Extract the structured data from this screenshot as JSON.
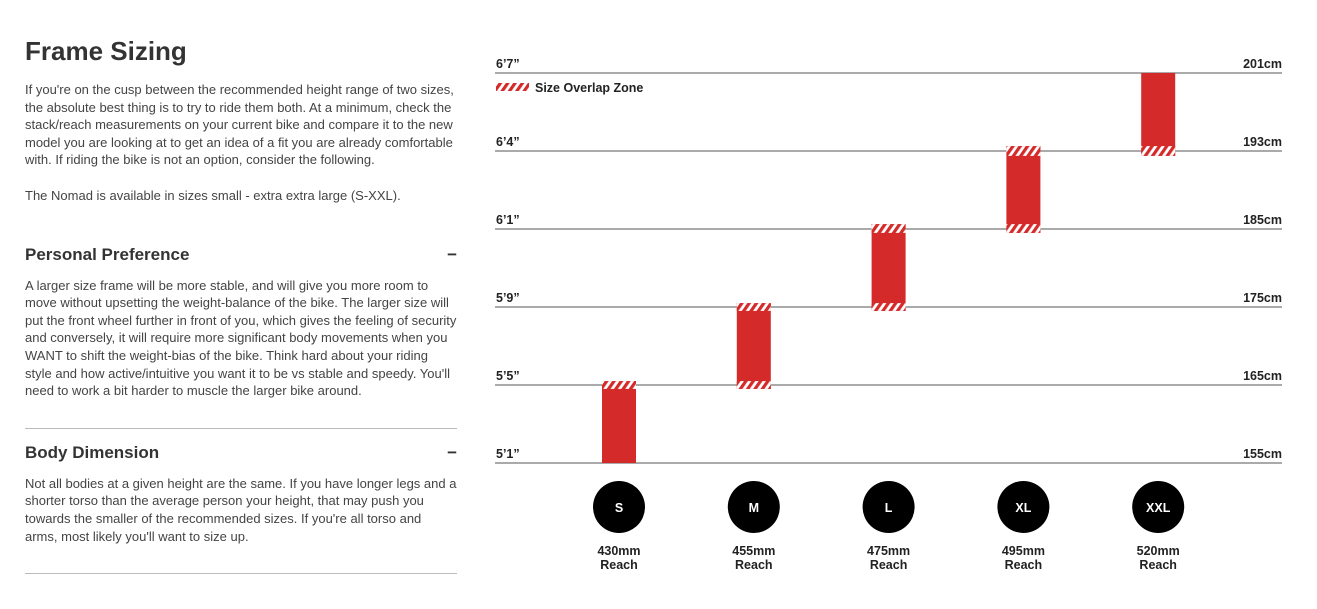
{
  "article": {
    "title": "Frame Sizing",
    "intro": [
      "If you're on the cusp between the recommended height range of two sizes, the absolute best thing is to try to ride them both. At a minimum, check the stack/reach measurements on your current bike and compare it to the new model you are looking at to get an idea of a fit you are already comfortable with. If riding the bike is not an option, consider the following.",
      "The Nomad is available in sizes small - extra extra large (S-XXL)."
    ],
    "sections": [
      {
        "heading": "Personal Preference",
        "toggle": "−",
        "body": "A larger size frame will be more stable, and will give you more room to move without upsetting the weight-balance of the bike. The larger size will put the front wheel further in front of you, which gives the feeling of security and conversely, it will require more significant body movements when you WANT to shift the weight-bias of the bike. Think hard about your riding style and how active/intuitive you want it to be vs stable and speedy. You'll need to work a bit harder to muscle the larger bike around."
      },
      {
        "heading": "Body Dimension",
        "toggle": "−",
        "body": "Not all bodies at a given height are the same. If you have longer legs and a shorter torso than the average person your height, that may push you towards the smaller of the recommended sizes. If you're all torso and arms, most likely you'll want to size up."
      }
    ]
  },
  "chart_data": {
    "type": "range-bar",
    "legend": "Size Overlap Zone",
    "color": "#d42a2a",
    "yticks": [
      {
        "value": 155,
        "label": "155cm",
        "imperial": "5’1”"
      },
      {
        "value": 165,
        "label": "165cm",
        "imperial": "5’5”"
      },
      {
        "value": 175,
        "label": "175cm",
        "imperial": "5’9”"
      },
      {
        "value": 185,
        "label": "185cm",
        "imperial": "6’1”"
      },
      {
        "value": 193,
        "label": "193cm",
        "imperial": "6’4”"
      },
      {
        "value": 201,
        "label": "201cm",
        "imperial": "6’7”"
      }
    ],
    "ylim": [
      155,
      201
    ],
    "reach_label": "Reach",
    "bars": [
      {
        "size": "S",
        "reach": "430mm",
        "low": 155,
        "high": 165.5
      },
      {
        "size": "M",
        "reach": "455mm",
        "low": 164.5,
        "high": 175.5
      },
      {
        "size": "L",
        "reach": "475mm",
        "low": 174.5,
        "high": 185.5
      },
      {
        "size": "XL",
        "reach": "495mm",
        "low": 184.5,
        "high": 193.5
      },
      {
        "size": "XXL",
        "reach": "520mm",
        "low": 192.5,
        "high": 201
      }
    ]
  }
}
